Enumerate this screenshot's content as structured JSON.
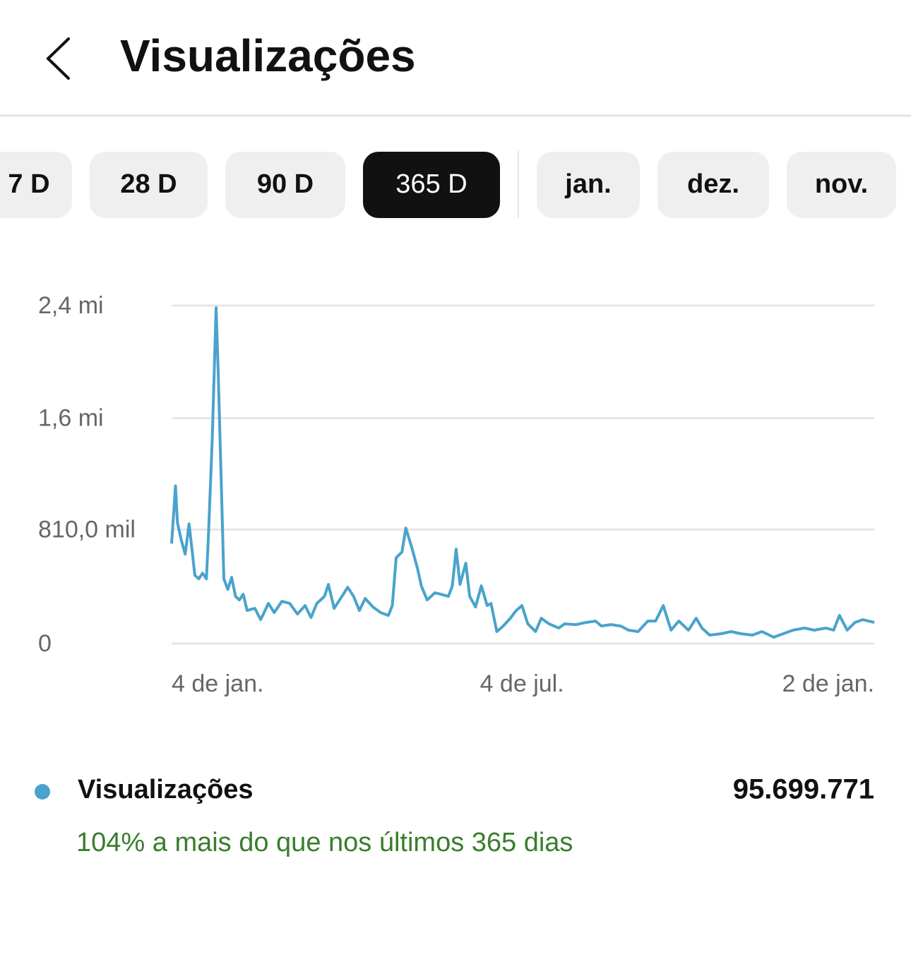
{
  "header": {
    "title": "Visualizações"
  },
  "tabs": [
    {
      "label": "7 D"
    },
    {
      "label": "28 D"
    },
    {
      "label": "90 D"
    },
    {
      "label": "365 D",
      "selected": true
    },
    {
      "label": "jan."
    },
    {
      "label": "dez."
    },
    {
      "label": "nov."
    }
  ],
  "chart_data": {
    "type": "line",
    "x": [
      0,
      2,
      3,
      5,
      7,
      9,
      11,
      12,
      14,
      16,
      18,
      19,
      21,
      23,
      24,
      26,
      27,
      29,
      31,
      33,
      35,
      37,
      39,
      43,
      46,
      50,
      53,
      57,
      61,
      65,
      69,
      72,
      75,
      79,
      81,
      84,
      88,
      91,
      94,
      97,
      100,
      104,
      108,
      112,
      114,
      116,
      119,
      121,
      124,
      127,
      129,
      132,
      136,
      139,
      143,
      145,
      147,
      149,
      152,
      154,
      157,
      160,
      163,
      165,
      168,
      171,
      175,
      178,
      181,
      184,
      188,
      191,
      195,
      200,
      203,
      209,
      214,
      219,
      222,
      227,
      232,
      236,
      241,
      246,
      250,
      254,
      258,
      262,
      267,
      271,
      274,
      278,
      284,
      289,
      294,
      300,
      305,
      311,
      316,
      321,
      327,
      332,
      338,
      342,
      345,
      349,
      353,
      357,
      360,
      363
    ],
    "series": [
      {
        "name": "Visualizações",
        "color": "#4aa3cc",
        "values": [
          710000,
          1120000,
          860000,
          735000,
          635000,
          850000,
          610000,
          485000,
          460000,
          500000,
          460000,
          760000,
          1460000,
          2385000,
          1960000,
          960000,
          460000,
          385000,
          470000,
          335000,
          310000,
          350000,
          235000,
          250000,
          170000,
          285000,
          220000,
          300000,
          285000,
          210000,
          270000,
          185000,
          285000,
          335000,
          420000,
          250000,
          335000,
          400000,
          335000,
          235000,
          320000,
          260000,
          220000,
          200000,
          270000,
          610000,
          650000,
          820000,
          685000,
          535000,
          410000,
          310000,
          360000,
          350000,
          335000,
          410000,
          670000,
          420000,
          570000,
          335000,
          260000,
          410000,
          270000,
          285000,
          85000,
          120000,
          180000,
          235000,
          270000,
          140000,
          85000,
          180000,
          140000,
          110000,
          140000,
          135000,
          150000,
          160000,
          125000,
          135000,
          125000,
          95000,
          85000,
          160000,
          160000,
          270000,
          95000,
          160000,
          95000,
          180000,
          110000,
          60000,
          70000,
          85000,
          70000,
          60000,
          85000,
          45000,
          70000,
          95000,
          110000,
          95000,
          110000,
          95000,
          200000,
          95000,
          150000,
          170000,
          160000,
          150000
        ]
      }
    ],
    "xlim": [
      0,
      363
    ],
    "xticks": [
      {
        "value": 0,
        "label": "4 de jan."
      },
      {
        "value": 181,
        "label": "4 de jul."
      },
      {
        "value": 363,
        "label": "2 de jan."
      }
    ],
    "ylim": [
      0,
      2400000
    ],
    "yticks": [
      0,
      {
        "value": 810000,
        "label": "810,0 mil"
      },
      {
        "value": 1600000,
        "label": "1,6 mi"
      },
      {
        "value": 2400000,
        "label": "2,4 mi"
      }
    ],
    "grid": true
  },
  "summary": {
    "total": "95.699.771",
    "comparison": "104% a mais do que nos últimos 365 dias"
  }
}
